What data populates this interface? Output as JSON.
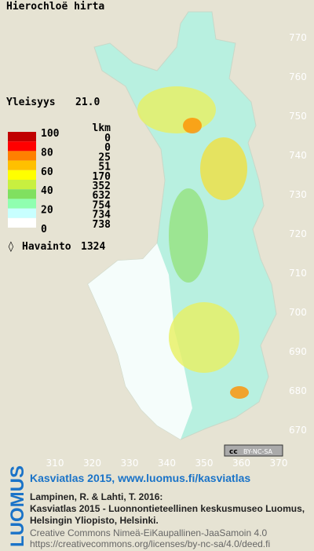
{
  "title": "Hierochloë hirta",
  "frequency": {
    "label": "Yleisyys",
    "value": "21.0"
  },
  "legend": {
    "scale_labels": [
      "100",
      "80",
      "60",
      "40",
      "20",
      "0"
    ],
    "count_header": "lkm",
    "classes": [
      {
        "color": "#c00000",
        "count": "0"
      },
      {
        "color": "#ff0000",
        "count": "0"
      },
      {
        "color": "#ff8000",
        "count": "25"
      },
      {
        "color": "#ffc000",
        "count": "51"
      },
      {
        "color": "#ffff00",
        "count": "170"
      },
      {
        "color": "#c8f040",
        "count": "352"
      },
      {
        "color": "#80e060",
        "count": "632"
      },
      {
        "color": "#90ffb0",
        "count": "754"
      },
      {
        "color": "#c8ffff",
        "count": "734"
      },
      {
        "color": "#ffffff",
        "count": "738"
      }
    ]
  },
  "observations": {
    "symbol": "◊",
    "label": "Havainto",
    "count": "1324"
  },
  "grid": {
    "northing": [
      770,
      760,
      750,
      740,
      730,
      720,
      710,
      700,
      690,
      680,
      670
    ],
    "easting": [
      310,
      320,
      330,
      340,
      350,
      360,
      370
    ]
  },
  "badge": {
    "cc": "cc",
    "text": "BY-NC-SA"
  },
  "footer": {
    "logo": "LUOMUS",
    "link": "Kasviatlas 2015, www.luomus.fi/kasviatlas",
    "citation": [
      "Lampinen, R. & Lahti, T. 2016:",
      "Kasviatlas 2015 - Luonnontieteellinen keskusmuseo Luomus,",
      "Helsingin Yliopisto, Helsinki."
    ],
    "license": [
      "Creative Commons Nimeä-EiKaupallinen-JaaSamoin 4.0",
      "https://creativecommons.org/licenses/by-nc-sa/4.0/deed.fi"
    ]
  }
}
